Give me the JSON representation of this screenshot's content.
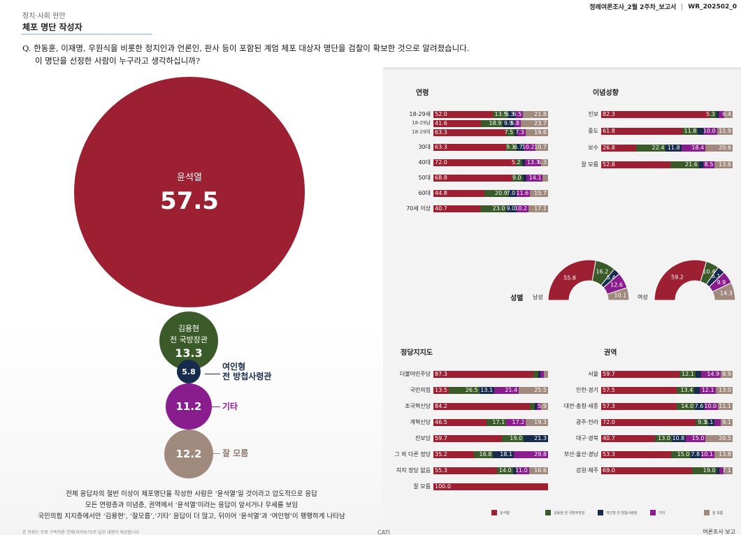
{
  "header": {
    "category": "정치·사회 현안",
    "title": "체포 명단 작성자",
    "top_right_report": "정례여론조사_2월 2주차_보고서",
    "top_right_code": "WR_202502_0"
  },
  "question": {
    "line1": "Q. 한동훈, 이재명, 우원식을 비롯한 정치인과 언론인, 판사 등이 포함된 계엄 체포 대상자 명단을 검찰이 확보한 것으로 알려졌습니다.",
    "line2": "이 명단을 선정한 사람이 누구라고 생각하십니까?"
  },
  "bubbles": {
    "main": {
      "name": "윤석열",
      "value": "57.5"
    },
    "kim": {
      "name_line1": "김용현",
      "name_line2": "전 국방장관",
      "value": "13.3"
    },
    "yeo": {
      "value": "5.8",
      "label_line1": "여인형",
      "label_line2": "전 방첩사령관"
    },
    "etc": {
      "value": "11.2",
      "label": "기타"
    },
    "dunno": {
      "value": "12.2",
      "label": "잘 모름"
    }
  },
  "summary": {
    "line1": "전체 응답자의 절반 이상이 체포명단을 작성한 사람은 ‘윤석열’일 것이라고 압도적으로 응답",
    "line2": "모든 연령층과 이념층, 권역에서 ‘윤석열’이라는 응답이 앞서거나 우세를 보임",
    "line3": "국민의힘 지지층에서만 ‘김용현’, ‘잘모름’,‘기타’ 응답이 더 많고, 뒤이어 ‘윤석열’과 ‘여인형’이 팽팽하게 나타남"
  },
  "footer": {
    "note": "본 자료는 무료 구독자용 연재(미리보기)로 일부 내용이 제공됩니다",
    "cati": "CATI",
    "right": "여론조사 보고"
  },
  "colors": {
    "yoon": "#9c1f32",
    "kim": "#3b5a2a",
    "yeo": "#172b4d",
    "etc": "#8a1d8e",
    "dunno": "#a08a7e"
  },
  "legend": [
    "윤석열",
    "김용현 전 국방부장관",
    "여인형 전 방첩사령관",
    "기타",
    "잘 모름"
  ],
  "sections": {
    "age": {
      "title": "연령",
      "rows": [
        {
          "label": "18-29세",
          "values": [
            52.0,
            13.5,
            6.3,
            6.5,
            21.8
          ],
          "shown": [
            "52.0",
            "13.5",
            "6.3",
            "6.5",
            "21.8"
          ]
        },
        {
          "label": "18-29남",
          "values": [
            41.6,
            18.9,
            9.9,
            5.8,
            23.7
          ],
          "shown": [
            "41.6",
            "18.9",
            "9.9",
            "5.8",
            "23.7"
          ],
          "small": true
        },
        {
          "label": "18-29여",
          "values": [
            63.3,
            7.5,
            2.3,
            7.3,
            19.6
          ],
          "shown": [
            "63.3",
            "7.5",
            "",
            "7.3",
            "19.6"
          ],
          "small": true
        },
        {
          "label": "30대",
          "values": [
            63.3,
            9.1,
            6.7,
            10.2,
            10.7
          ],
          "shown": [
            "63.3",
            "9.1",
            "6.7",
            "10.2",
            "10.7"
          ]
        },
        {
          "label": "40대",
          "values": [
            72.0,
            5.2,
            2.8,
            13.7,
            6.3
          ],
          "shown": [
            "72.0",
            "5.2",
            "",
            "13.7",
            "6.3"
          ]
        },
        {
          "label": "50대",
          "values": [
            68.8,
            9.0,
            3.5,
            14.1,
            4.6
          ],
          "shown": [
            "68.8",
            "9.0",
            "",
            "14.1",
            ""
          ]
        },
        {
          "label": "60대",
          "values": [
            44.8,
            20.9,
            7.0,
            11.6,
            15.7
          ],
          "shown": [
            "44.8",
            "20.9",
            "7.0",
            "11.6",
            "15.7"
          ]
        },
        {
          "label": "70세 이상",
          "values": [
            40.7,
            23.0,
            9.0,
            10.2,
            17.1
          ],
          "shown": [
            "40.7",
            "23.0",
            "9.0",
            "10.2",
            "17.1"
          ]
        }
      ]
    },
    "ideology": {
      "title": "이념성향",
      "rows": [
        {
          "label": "진보",
          "values": [
            82.3,
            5.3,
            2.0,
            4.0,
            6.4
          ],
          "shown": [
            "82.3",
            "5.3",
            "",
            "",
            "6.4"
          ]
        },
        {
          "label": "중도",
          "values": [
            61.8,
            11.8,
            4.5,
            10.0,
            11.9
          ],
          "shown": [
            "61.8",
            "11.8",
            "",
            "10.0",
            "11.9"
          ]
        },
        {
          "label": "보수",
          "values": [
            26.8,
            22.4,
            11.8,
            18.4,
            20.6
          ],
          "shown": [
            "26.8",
            "22.4",
            "11.8",
            "18.4",
            "20.6"
          ]
        },
        {
          "label": "잘 모름",
          "values": [
            52.8,
            21.6,
            3.5,
            8.5,
            13.6
          ],
          "shown": [
            "52.8",
            "21.6",
            "",
            "8.5",
            "13.6"
          ]
        }
      ]
    },
    "gender": {
      "title": "성별",
      "male": {
        "label": "남성",
        "values": [
          55.8,
          16.2,
          5.4,
          12.6,
          10.1
        ],
        "shown": [
          "55.8",
          "16.2",
          "5.4",
          "12.6",
          "10.1"
        ]
      },
      "female": {
        "label": "여성",
        "values": [
          59.2,
          10.4,
          6.1,
          9.9,
          14.3
        ],
        "shown": [
          "59.2",
          "10.4",
          "6.1",
          "9.9",
          "14.3"
        ]
      }
    },
    "party": {
      "title": "정당지지도",
      "rows": [
        {
          "label": "더불어민주당",
          "values": [
            87.3,
            4.0,
            2.0,
            3.0,
            3.7
          ],
          "shown": [
            "87.3",
            "",
            "",
            "",
            ""
          ]
        },
        {
          "label": "국민의힘",
          "values": [
            13.5,
            26.5,
            13.1,
            21.4,
            25.5
          ],
          "shown": [
            "13.5",
            "26.5",
            "13.1",
            "21.4",
            "25.5"
          ]
        },
        {
          "label": "조국혁신당",
          "values": [
            84.2,
            4.0,
            2.0,
            3.9,
            5.9
          ],
          "shown": [
            "84.2",
            "",
            "",
            "",
            "5.9"
          ]
        },
        {
          "label": "개혁신당",
          "values": [
            46.5,
            17.1,
            0.0,
            17.2,
            19.3
          ],
          "shown": [
            "46.5",
            "17.1",
            "",
            "17.2",
            "19.3"
          ]
        },
        {
          "label": "진보당",
          "values": [
            59.7,
            19.0,
            21.3,
            0.0,
            0.0
          ],
          "shown": [
            "59.7",
            "19.0",
            "21.3",
            "",
            ""
          ]
        },
        {
          "label": "그 외 다른 정당",
          "values": [
            35.2,
            16.8,
            18.1,
            29.8,
            0.0
          ],
          "shown": [
            "35.2",
            "16.8",
            "18.1",
            "29.8",
            ""
          ]
        },
        {
          "label": "지지 정당 없음",
          "values": [
            55.3,
            14.0,
            3.1,
            11.0,
            16.6
          ],
          "shown": [
            "55.3",
            "14.0",
            "",
            "11.0",
            "16.6"
          ]
        },
        {
          "label": "잘 모름",
          "values": [
            100.0,
            0,
            0,
            0,
            0
          ],
          "shown": [
            "100.0",
            "",
            "",
            "",
            ""
          ]
        }
      ]
    },
    "region": {
      "title": "권역",
      "rows": [
        {
          "label": "서울",
          "values": [
            59.7,
            12.1,
            4.5,
            14.9,
            8.9
          ],
          "shown": [
            "59.7",
            "12.1",
            "",
            "14.9",
            "8.9"
          ]
        },
        {
          "label": "인천·경기",
          "values": [
            57.5,
            13.4,
            4.0,
            12.1,
            13.0
          ],
          "shown": [
            "57.5",
            "13.4",
            "",
            "12.1",
            "13.0"
          ]
        },
        {
          "label": "대전·충청·세종",
          "values": [
            57.3,
            14.0,
            7.6,
            10.0,
            11.1
          ],
          "shown": [
            "57.3",
            "14.0",
            "7.6",
            "10.0",
            "11.1"
          ]
        },
        {
          "label": "광주·전라",
          "values": [
            72.0,
            9.3,
            5.1,
            4.5,
            9.1
          ],
          "shown": [
            "72.0",
            "9.3",
            "5.1",
            "",
            "9.1"
          ]
        },
        {
          "label": "대구·경북",
          "values": [
            40.7,
            13.0,
            10.8,
            15.0,
            20.5
          ],
          "shown": [
            "40.7",
            "13.0",
            "10.8",
            "15.0",
            "20.5"
          ]
        },
        {
          "label": "부산·울산·경남",
          "values": [
            53.3,
            15.0,
            7.8,
            10.1,
            13.8
          ],
          "shown": [
            "53.3",
            "15.0",
            "7.8",
            "10.1",
            "13.8"
          ]
        },
        {
          "label": "강원·제주",
          "values": [
            69.0,
            19.0,
            2.0,
            2.9,
            7.1
          ],
          "shown": [
            "69.0",
            "19.0",
            "",
            "",
            "7.1"
          ]
        }
      ]
    }
  }
}
